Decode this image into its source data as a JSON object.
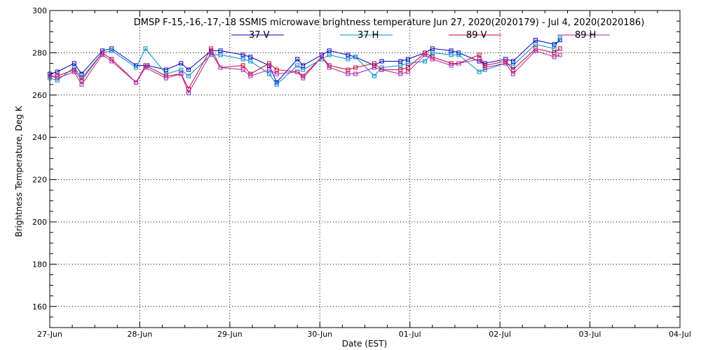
{
  "chart_data": {
    "type": "line",
    "title": "DMSP F-15,-16,-17,-18 SSMIS microwave brightness temperature Jun 27, 2020(2020179) - Jul  4, 2020(2020186)",
    "xlabel": "Date (EST)",
    "ylabel": "Brightness Temperature, Deg K",
    "xlim": [
      "2020-06-27",
      "2020-07-04"
    ],
    "ylim": [
      150,
      300
    ],
    "x_ticks": [
      "27-Jun",
      "28-Jun",
      "29-Jun",
      "30-Jun",
      "01-Jul",
      "02-Jul",
      "03-Jul",
      "04-Jul"
    ],
    "y_ticks": [
      160,
      180,
      200,
      220,
      240,
      260,
      280,
      300
    ],
    "grid": true,
    "legend_position": "top",
    "series": [
      {
        "name": "37 V",
        "color": "#0000bb",
        "points": [
          [
            "2020-06-27 00:00",
            270
          ],
          [
            "2020-06-27 02:00",
            271
          ],
          [
            "2020-06-27 06:30",
            275
          ],
          [
            "2020-06-27 08:30",
            270
          ],
          [
            "2020-06-27 14:00",
            281
          ],
          [
            "2020-06-27 16:30",
            282
          ],
          [
            "2020-06-27 23:00",
            274
          ],
          [
            "2020-06-28 01:30",
            274
          ],
          [
            "2020-06-28 02:00",
            274
          ],
          [
            "2020-06-28 07:00",
            272
          ],
          [
            "2020-06-28 11:00",
            275
          ],
          [
            "2020-06-28 13:00",
            272
          ],
          [
            "2020-06-28 19:00",
            281
          ],
          [
            "2020-06-28 21:30",
            281
          ],
          [
            "2020-06-29 03:30",
            279
          ],
          [
            "2020-06-29 05:30",
            278
          ],
          [
            "2020-06-29 10:30",
            274
          ],
          [
            "2020-06-29 12:30",
            266
          ],
          [
            "2020-06-29 18:00",
            277
          ],
          [
            "2020-06-29 19:30",
            274
          ],
          [
            "2020-06-30 00:30",
            279
          ],
          [
            "2020-06-30 02:30",
            281
          ],
          [
            "2020-06-30 07:30",
            279
          ],
          [
            "2020-06-30 09:30",
            278
          ],
          [
            "2020-06-30 14:30",
            274
          ],
          [
            "2020-06-30 16:30",
            276
          ],
          [
            "2020-06-30 21:30",
            276
          ],
          [
            "2020-06-30 23:30",
            277
          ],
          [
            "2020-07-01 04:00",
            280
          ],
          [
            "2020-07-01 06:00",
            282
          ],
          [
            "2020-07-01 11:00",
            281
          ],
          [
            "2020-07-01 13:00",
            280
          ],
          [
            "2020-07-01 18:30",
            276
          ],
          [
            "2020-07-01 20:00",
            275
          ],
          [
            "2020-07-02 01:30",
            277
          ],
          [
            "2020-07-02 03:30",
            276
          ],
          [
            "2020-07-02 09:30",
            286
          ],
          [
            "2020-07-02 14:30",
            284
          ],
          [
            "2020-07-02 16:00",
            286
          ]
        ]
      },
      {
        "name": "37 H",
        "color": "#0088cc",
        "points": [
          [
            "2020-06-27 00:00",
            268
          ],
          [
            "2020-06-27 02:00",
            267
          ],
          [
            "2020-06-27 06:30",
            273
          ],
          [
            "2020-06-27 08:30",
            268
          ],
          [
            "2020-06-27 14:00",
            280
          ],
          [
            "2020-06-27 16:30",
            281
          ],
          [
            "2020-06-27 23:00",
            273
          ],
          [
            "2020-06-28 01:30",
            282
          ],
          [
            "2020-06-28 07:00",
            270
          ],
          [
            "2020-06-28 11:00",
            272
          ],
          [
            "2020-06-28 13:00",
            269
          ],
          [
            "2020-06-28 19:00",
            279
          ],
          [
            "2020-06-28 21:30",
            279
          ],
          [
            "2020-06-29 03:30",
            277
          ],
          [
            "2020-06-29 05:30",
            276
          ],
          [
            "2020-06-29 10:30",
            270
          ],
          [
            "2020-06-29 12:30",
            265
          ],
          [
            "2020-06-29 18:00",
            274
          ],
          [
            "2020-06-29 19:30",
            272
          ],
          [
            "2020-06-30 00:30",
            277
          ],
          [
            "2020-06-30 02:30",
            279
          ],
          [
            "2020-06-30 07:30",
            277
          ],
          [
            "2020-06-30 09:30",
            278
          ],
          [
            "2020-06-30 14:30",
            269
          ],
          [
            "2020-06-30 16:30",
            273
          ],
          [
            "2020-06-30 21:30",
            274
          ],
          [
            "2020-06-30 23:30",
            275
          ],
          [
            "2020-07-01 04:00",
            276
          ],
          [
            "2020-07-01 06:00",
            280
          ],
          [
            "2020-07-01 11:00",
            279
          ],
          [
            "2020-07-01 13:00",
            279
          ],
          [
            "2020-07-01 18:30",
            271
          ],
          [
            "2020-07-01 20:00",
            272
          ],
          [
            "2020-07-02 01:30",
            275
          ],
          [
            "2020-07-02 03:30",
            274
          ],
          [
            "2020-07-02 09:30",
            284
          ],
          [
            "2020-07-02 14:30",
            282
          ],
          [
            "2020-07-02 16:00",
            287
          ]
        ]
      },
      {
        "name": "89 V",
        "color": "#cc0033",
        "points": [
          [
            "2020-06-27 00:00",
            269
          ],
          [
            "2020-06-27 02:00",
            269
          ],
          [
            "2020-06-27 06:30",
            272
          ],
          [
            "2020-06-27 08:30",
            267
          ],
          [
            "2020-06-27 14:00",
            280
          ],
          [
            "2020-06-27 16:30",
            277
          ],
          [
            "2020-06-27 23:00",
            266
          ],
          [
            "2020-06-28 01:30",
            274
          ],
          [
            "2020-06-28 07:00",
            269
          ],
          [
            "2020-06-28 11:00",
            270
          ],
          [
            "2020-06-28 13:00",
            263
          ],
          [
            "2020-06-28 19:00",
            282
          ],
          [
            "2020-06-28 21:30",
            273
          ],
          [
            "2020-06-29 03:30",
            274
          ],
          [
            "2020-06-29 05:30",
            270
          ],
          [
            "2020-06-29 10:30",
            275
          ],
          [
            "2020-06-29 12:30",
            272
          ],
          [
            "2020-06-29 18:00",
            271
          ],
          [
            "2020-06-29 19:30",
            269
          ],
          [
            "2020-06-30 00:30",
            278
          ],
          [
            "2020-06-30 02:30",
            274
          ],
          [
            "2020-06-30 07:30",
            272
          ],
          [
            "2020-06-30 09:30",
            273
          ],
          [
            "2020-06-30 14:30",
            275
          ],
          [
            "2020-06-30 16:30",
            272
          ],
          [
            "2020-06-30 21:30",
            272
          ],
          [
            "2020-06-30 23:30",
            273
          ],
          [
            "2020-07-01 04:00",
            280
          ],
          [
            "2020-07-01 06:00",
            278
          ],
          [
            "2020-07-01 11:00",
            275
          ],
          [
            "2020-07-01 13:00",
            275
          ],
          [
            "2020-07-01 18:30",
            279
          ],
          [
            "2020-07-01 20:00",
            274
          ],
          [
            "2020-07-02 01:30",
            276
          ],
          [
            "2020-07-02 03:30",
            272
          ],
          [
            "2020-07-02 09:30",
            282
          ],
          [
            "2020-07-02 14:30",
            280
          ],
          [
            "2020-07-02 16:00",
            282
          ]
        ]
      },
      {
        "name": "89 H",
        "color": "#aa22aa",
        "points": [
          [
            "2020-06-27 00:00",
            269
          ],
          [
            "2020-06-27 02:00",
            268
          ],
          [
            "2020-06-27 06:30",
            271
          ],
          [
            "2020-06-27 08:30",
            265
          ],
          [
            "2020-06-27 14:00",
            279
          ],
          [
            "2020-06-27 16:30",
            276
          ],
          [
            "2020-06-27 23:00",
            266
          ],
          [
            "2020-06-28 01:30",
            273
          ],
          [
            "2020-06-28 07:00",
            268
          ],
          [
            "2020-06-28 11:00",
            270
          ],
          [
            "2020-06-28 13:00",
            261
          ],
          [
            "2020-06-28 19:00",
            280
          ],
          [
            "2020-06-28 21:30",
            273
          ],
          [
            "2020-06-29 03:30",
            272
          ],
          [
            "2020-06-29 05:30",
            269
          ],
          [
            "2020-06-29 10:30",
            272
          ],
          [
            "2020-06-29 12:30",
            270
          ],
          [
            "2020-06-29 18:00",
            271
          ],
          [
            "2020-06-29 19:30",
            268
          ],
          [
            "2020-06-30 00:30",
            278
          ],
          [
            "2020-06-30 02:30",
            273
          ],
          [
            "2020-06-30 07:30",
            270
          ],
          [
            "2020-06-30 09:30",
            270
          ],
          [
            "2020-06-30 14:30",
            273
          ],
          [
            "2020-06-30 16:30",
            272
          ],
          [
            "2020-06-30 21:30",
            270
          ],
          [
            "2020-06-30 23:30",
            271
          ],
          [
            "2020-07-01 04:00",
            279
          ],
          [
            "2020-07-01 06:00",
            277
          ],
          [
            "2020-07-01 11:00",
            274
          ],
          [
            "2020-07-01 13:00",
            275
          ],
          [
            "2020-07-01 18:30",
            277
          ],
          [
            "2020-07-01 20:00",
            273
          ],
          [
            "2020-07-02 01:30",
            275
          ],
          [
            "2020-07-02 03:30",
            270
          ],
          [
            "2020-07-02 09:30",
            281
          ],
          [
            "2020-07-02 14:30",
            278
          ],
          [
            "2020-07-02 16:00",
            279
          ]
        ]
      }
    ]
  }
}
